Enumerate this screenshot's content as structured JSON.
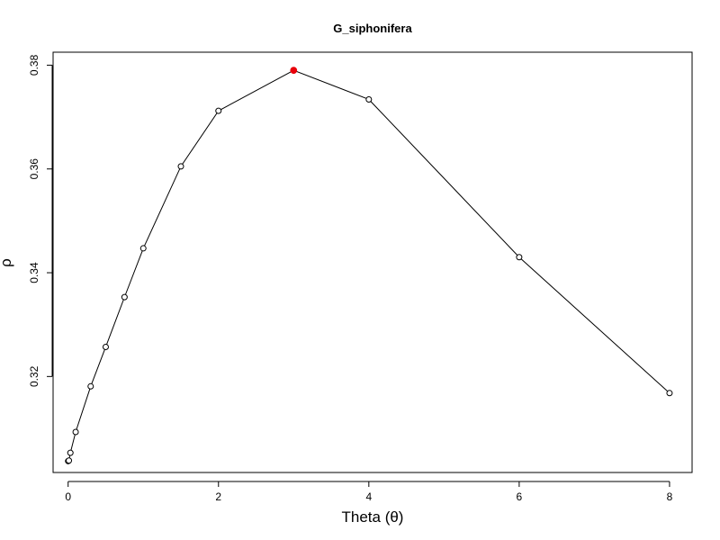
{
  "chart_data": {
    "type": "line",
    "title": "G_siphonifera",
    "xlabel": "Theta (θ)",
    "ylabel": "ρ",
    "xlim": [
      -0.2,
      8.3
    ],
    "ylim": [
      0.3015,
      0.3825
    ],
    "x_ticks": [
      0,
      2,
      4,
      6,
      8
    ],
    "x_tick_labels": [
      "0",
      "2",
      "4",
      "6",
      "8"
    ],
    "y_ticks": [
      0.32,
      0.34,
      0.36,
      0.38
    ],
    "y_tick_labels": [
      "0.32",
      "0.34",
      "0.36",
      "0.38"
    ],
    "grid": false,
    "series": [
      {
        "x": [
          0,
          0.01,
          0.03,
          0.1,
          0.3,
          0.5,
          0.75,
          1,
          1.5,
          2,
          3,
          4,
          6,
          8
        ],
        "y": [
          0.3037,
          0.3038,
          0.3053,
          0.3093,
          0.3181,
          0.3257,
          0.3353,
          0.3447,
          0.3605,
          0.3712,
          0.379,
          0.3734,
          0.343,
          0.3168
        ],
        "highlight_index": 10,
        "line_color": "#000000",
        "marker_color": "#000000",
        "highlight_color": "#e8000b"
      }
    ]
  }
}
